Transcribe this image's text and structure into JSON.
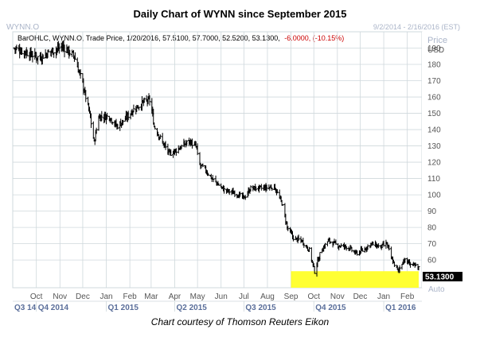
{
  "title": "Daily Chart of WYNN since September 2015",
  "caption": "Chart courtesy of Thomson Reuters Eikon",
  "header": {
    "name": "WYNN.O",
    "range": "9/2/2014 - 2/16/2016 (EST)",
    "price_label": "Price",
    "currency": "USD"
  },
  "info": {
    "series_desc": "BarOHLC, WYNN.O, Trade Price, 1/20/2016, 57.5100, 57.7000, 52.5200, 53.1300,",
    "change": "-6.0000, (-10.15%)"
  },
  "last_price_label": "53.1300",
  "auto_label": "Auto",
  "colors": {
    "bars": "#000000",
    "grid": "#cfd8dc",
    "highlight": "#ffff33",
    "change": "#cc0000",
    "axis_text": "#555555",
    "axis_text_faint": "#aab4c8",
    "quarter_text": "#5a6e9a"
  },
  "chart_data": {
    "type": "ohlc",
    "ylim": [
      43,
      200
    ],
    "yticks": [
      60,
      70,
      80,
      90,
      100,
      110,
      120,
      130,
      140,
      150,
      160,
      170,
      180,
      190
    ],
    "month_labels": [
      "Oct",
      "Nov",
      "Dec",
      "Jan",
      "Feb",
      "Mar",
      "Apr",
      "May",
      "Jun",
      "Jul",
      "Aug",
      "Sep",
      "Oct",
      "Nov",
      "Dec",
      "Jan",
      "Feb"
    ],
    "quarter_labels": [
      "Q3 14",
      "Q4 2014",
      "Q1 2015",
      "Q2 2015",
      "Q3 2015",
      "Q4 2015",
      "Q1 2016"
    ],
    "price_path": [
      {
        "date": "2014-09-02",
        "close": 190
      },
      {
        "date": "2014-09-20",
        "close": 187
      },
      {
        "date": "2014-10-05",
        "close": 184
      },
      {
        "date": "2014-10-20",
        "close": 188
      },
      {
        "date": "2014-11-05",
        "close": 191
      },
      {
        "date": "2014-11-20",
        "close": 185
      },
      {
        "date": "2014-12-01",
        "close": 168
      },
      {
        "date": "2014-12-10",
        "close": 150
      },
      {
        "date": "2014-12-16",
        "close": 132
      },
      {
        "date": "2014-12-22",
        "close": 148
      },
      {
        "date": "2015-01-05",
        "close": 148
      },
      {
        "date": "2015-01-15",
        "close": 142
      },
      {
        "date": "2015-01-25",
        "close": 146
      },
      {
        "date": "2015-02-05",
        "close": 152
      },
      {
        "date": "2015-02-20",
        "close": 157
      },
      {
        "date": "2015-02-28",
        "close": 158
      },
      {
        "date": "2015-03-05",
        "close": 142
      },
      {
        "date": "2015-03-15",
        "close": 133
      },
      {
        "date": "2015-03-25",
        "close": 125
      },
      {
        "date": "2015-04-05",
        "close": 128
      },
      {
        "date": "2015-04-20",
        "close": 133
      },
      {
        "date": "2015-04-30",
        "close": 129
      },
      {
        "date": "2015-05-02",
        "close": 119
      },
      {
        "date": "2015-05-10",
        "close": 116
      },
      {
        "date": "2015-05-20",
        "close": 110
      },
      {
        "date": "2015-06-05",
        "close": 103
      },
      {
        "date": "2015-06-20",
        "close": 101
      },
      {
        "date": "2015-07-01",
        "close": 98
      },
      {
        "date": "2015-07-10",
        "close": 104
      },
      {
        "date": "2015-07-25",
        "close": 104
      },
      {
        "date": "2015-08-10",
        "close": 105
      },
      {
        "date": "2015-08-20",
        "close": 95
      },
      {
        "date": "2015-08-27",
        "close": 80
      },
      {
        "date": "2015-09-05",
        "close": 73
      },
      {
        "date": "2015-09-15",
        "close": 72
      },
      {
        "date": "2015-09-25",
        "close": 66
      },
      {
        "date": "2015-10-02",
        "close": 53
      },
      {
        "date": "2015-10-10",
        "close": 65
      },
      {
        "date": "2015-10-20",
        "close": 72
      },
      {
        "date": "2015-11-01",
        "close": 69
      },
      {
        "date": "2015-11-15",
        "close": 68
      },
      {
        "date": "2015-11-25",
        "close": 64
      },
      {
        "date": "2015-12-05",
        "close": 66
      },
      {
        "date": "2015-12-15",
        "close": 70
      },
      {
        "date": "2015-12-28",
        "close": 68
      },
      {
        "date": "2016-01-05",
        "close": 70
      },
      {
        "date": "2016-01-12",
        "close": 60
      },
      {
        "date": "2016-01-20",
        "close": 53.13
      },
      {
        "date": "2016-01-27",
        "close": 60
      },
      {
        "date": "2016-02-04",
        "close": 58
      },
      {
        "date": "2016-02-16",
        "close": 55
      }
    ],
    "highlight_zone": {
      "y_from": 43,
      "y_to": 53.13,
      "x_from": "2015-09-01",
      "x_to": "2016-02-16"
    }
  }
}
